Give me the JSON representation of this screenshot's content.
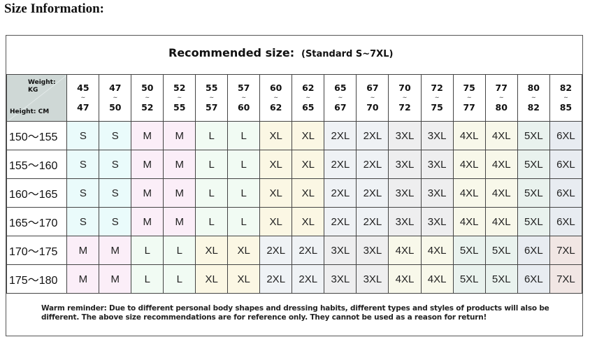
{
  "heading": "Size Information:",
  "chart_data": {
    "type": "table",
    "title": "Recommended size:",
    "subtitle": "(Standard S~7XL)",
    "corner_weight_label": "Weight: KG",
    "corner_height_label": "Height: CM",
    "weight_ranges": [
      {
        "from": "45",
        "to": "47"
      },
      {
        "from": "47",
        "to": "50"
      },
      {
        "from": "50",
        "to": "52"
      },
      {
        "from": "52",
        "to": "55"
      },
      {
        "from": "55",
        "to": "57"
      },
      {
        "from": "57",
        "to": "60"
      },
      {
        "from": "60",
        "to": "62"
      },
      {
        "from": "62",
        "to": "65"
      },
      {
        "from": "65",
        "to": "67"
      },
      {
        "from": "67",
        "to": "70"
      },
      {
        "from": "70",
        "to": "72"
      },
      {
        "from": "72",
        "to": "75"
      },
      {
        "from": "75",
        "to": "77"
      },
      {
        "from": "77",
        "to": "80"
      },
      {
        "from": "80",
        "to": "82"
      },
      {
        "from": "82",
        "to": "85"
      }
    ],
    "range_separator": "~",
    "rows": [
      {
        "height": "150～155",
        "sizes": [
          "S",
          "S",
          "M",
          "M",
          "L",
          "L",
          "XL",
          "XL",
          "2XL",
          "2XL",
          "3XL",
          "3XL",
          "4XL",
          "4XL",
          "5XL",
          "6XL"
        ]
      },
      {
        "height": "155～160",
        "sizes": [
          "S",
          "S",
          "M",
          "M",
          "L",
          "L",
          "XL",
          "XL",
          "2XL",
          "2XL",
          "3XL",
          "3XL",
          "4XL",
          "4XL",
          "5XL",
          "6XL"
        ]
      },
      {
        "height": "160～165",
        "sizes": [
          "S",
          "S",
          "M",
          "M",
          "L",
          "L",
          "XL",
          "XL",
          "2XL",
          "2XL",
          "3XL",
          "3XL",
          "4XL",
          "4XL",
          "5XL",
          "6XL"
        ]
      },
      {
        "height": "165～170",
        "sizes": [
          "S",
          "S",
          "M",
          "M",
          "L",
          "L",
          "XL",
          "XL",
          "2XL",
          "2XL",
          "3XL",
          "3XL",
          "4XL",
          "4XL",
          "5XL",
          "6XL"
        ]
      },
      {
        "height": "170～175",
        "sizes": [
          "M",
          "M",
          "L",
          "L",
          "XL",
          "XL",
          "2XL",
          "2XL",
          "3XL",
          "3XL",
          "4XL",
          "4XL",
          "5XL",
          "5XL",
          "6XL",
          "7XL"
        ]
      },
      {
        "height": "175～180",
        "sizes": [
          "M",
          "M",
          "L",
          "L",
          "XL",
          "XL",
          "2XL",
          "2XL",
          "3XL",
          "3XL",
          "4XL",
          "4XL",
          "5XL",
          "5XL",
          "6XL",
          "7XL"
        ]
      }
    ],
    "size_colors": {
      "S": "#eafbfb",
      "M": "#fbeef8",
      "L": "#f1fbf3",
      "XL": "#fbf7e4",
      "2XL": "#eff2f5",
      "3XL": "#eeeeef",
      "4XL": "#f8f8ea",
      "5XL": "#e9f2ee",
      "6XL": "#e8ecf1",
      "7XL": "#f1e6e4"
    }
  },
  "footer": "Warm reminder: Due to different personal body shapes and dressing habits, different types and styles of products will also be different. The above size recommendations are for reference only. They cannot be used as a reason for return!"
}
